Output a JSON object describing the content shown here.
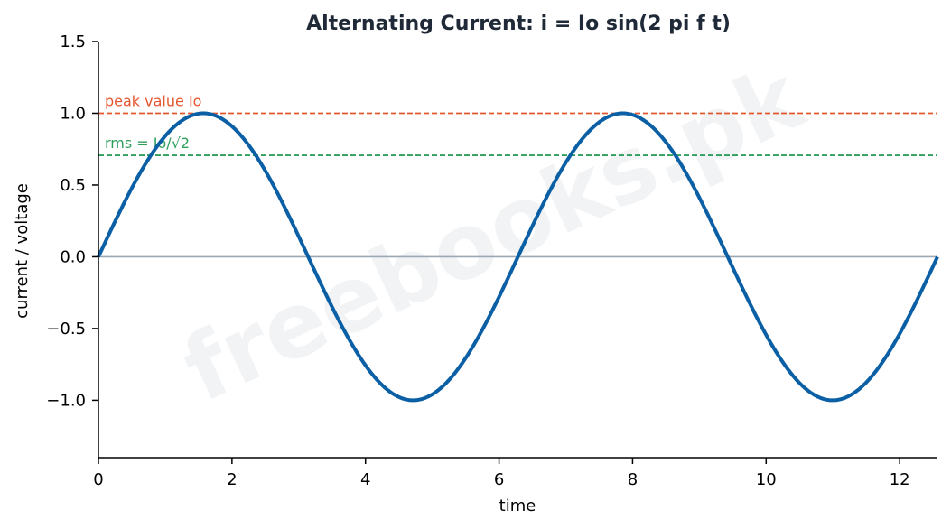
{
  "chart_data": {
    "type": "line",
    "title": "Alternating Current:  i = Io sin(2 pi f t)",
    "xlabel": "time",
    "ylabel": "current / voltage",
    "xlim": [
      0,
      12.566
    ],
    "ylim": [
      -1.4,
      1.5
    ],
    "xticks": [
      0,
      2,
      4,
      6,
      8,
      10,
      12
    ],
    "xtick_labels": [
      "0",
      "2",
      "4",
      "6",
      "8",
      "10",
      "12"
    ],
    "yticks": [
      1.5,
      1.0,
      0.5,
      0.0,
      -0.5,
      -1.0
    ],
    "ytick_labels": [
      "1.5",
      "1.0",
      "0.5",
      "0.0",
      "−0.5",
      "−1.0"
    ],
    "grid": false,
    "series": [
      {
        "function": "sin(t)",
        "x_range": [
          0,
          12.566
        ],
        "amplitude": 1.0,
        "color": "#0b5fa5"
      }
    ],
    "reference_lines": [
      {
        "label": "peak value Io",
        "y": 1.0,
        "color": "#e4572e",
        "style": "dashed"
      },
      {
        "label": "rms = Io/√2",
        "y": 0.707,
        "color": "#2e9e5b",
        "style": "dashed"
      },
      {
        "label": "",
        "y": 0.0,
        "color": "#9aa7b4",
        "style": "solid"
      }
    ]
  },
  "watermark": "freebooks.pk"
}
